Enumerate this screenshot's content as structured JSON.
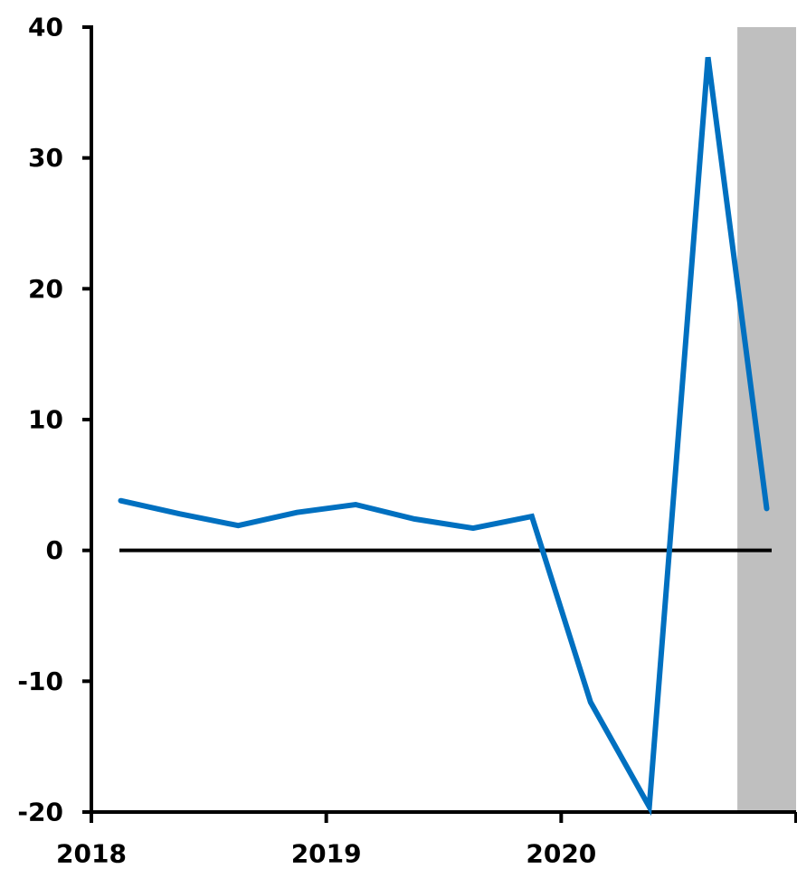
{
  "chart_data": {
    "type": "line",
    "title": "",
    "xlabel": "",
    "ylabel": "",
    "ylim": [
      -20,
      40
    ],
    "yticks": [
      -20,
      -10,
      0,
      10,
      20,
      30,
      40
    ],
    "ytick_labels": [
      "-20",
      "-10",
      "0",
      "10",
      "20",
      "30",
      "40"
    ],
    "xlim": [
      2018.0,
      2021.0
    ],
    "xticks": [
      2018,
      2019,
      2020,
      2021
    ],
    "xtick_labels": [
      "2018",
      "2019",
      "2020",
      ""
    ],
    "zero_line": true,
    "shaded_region": {
      "x_start": 2020.75,
      "x_end": 2021.0,
      "color": "#bfbfbf"
    },
    "series": [
      {
        "color": "#0070c0",
        "x": [
          2018.125,
          2018.375,
          2018.625,
          2018.875,
          2019.125,
          2019.375,
          2019.625,
          2019.875,
          2020.125,
          2020.375,
          2020.625,
          2020.875
        ],
        "values": [
          3.8,
          2.8,
          1.9,
          2.9,
          3.5,
          2.4,
          1.7,
          2.6,
          -11.6,
          -19.6,
          37.7,
          3.2
        ]
      }
    ]
  }
}
